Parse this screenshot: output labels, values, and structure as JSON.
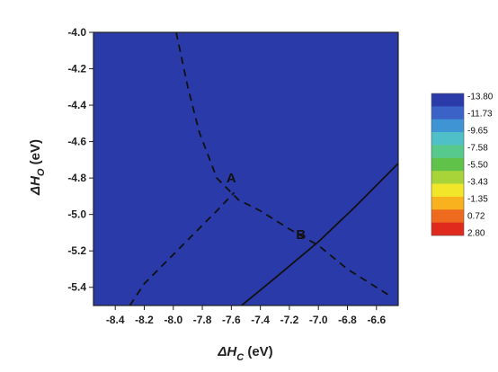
{
  "chart_data": {
    "type": "heatmap",
    "xlabel": {
      "prefix": "ΔH",
      "sub": "C",
      "suffix": " (eV)"
    },
    "ylabel": {
      "prefix": "ΔH",
      "sub": "O",
      "suffix": " (eV)"
    },
    "xlim": [
      -8.55,
      -6.45
    ],
    "ylim": [
      -5.5,
      -4.0
    ],
    "x_ticks": [
      "-8.4",
      "-8.2",
      "-8.0",
      "-7.8",
      "-7.6",
      "-7.4",
      "-7.2",
      "-7.0",
      "-6.8",
      "-6.6"
    ],
    "x_tick_values": [
      -8.4,
      -8.2,
      -8.0,
      -7.8,
      -7.6,
      -7.4,
      -7.2,
      -7.0,
      -6.8,
      -6.6
    ],
    "y_ticks": [
      "-4.0",
      "-4.2",
      "-4.4",
      "-4.6",
      "-4.8",
      "-5.0",
      "-5.2",
      "-5.4"
    ],
    "y_tick_values": [
      -4.0,
      -4.2,
      -4.4,
      -4.6,
      -4.8,
      -5.0,
      -5.2,
      -5.4
    ],
    "colorbar": {
      "labels": [
        "-13.80",
        "-11.73",
        "-9.65",
        "-7.58",
        "-5.50",
        "-3.43",
        "-1.35",
        "0.72",
        "2.80"
      ],
      "values": [
        -13.8,
        -11.73,
        -9.65,
        -7.58,
        -5.5,
        -3.43,
        -1.35,
        0.72,
        2.8
      ],
      "colors": [
        "#2a3aa8",
        "#3b62c6",
        "#3f94d4",
        "#4fc0c8",
        "#58c98c",
        "#61c24a",
        "#a8d43a",
        "#f2e62a",
        "#f7b21e",
        "#ee6a1f",
        "#e02a1d"
      ]
    },
    "points": [
      {
        "label": "A",
        "x": -7.6,
        "y": -4.8
      },
      {
        "label": "B",
        "x": -7.12,
        "y": -5.11
      }
    ],
    "dashed_boundary_points": [
      [
        -7.98,
        -4.0
      ],
      [
        -7.9,
        -4.3
      ],
      [
        -7.82,
        -4.55
      ],
      [
        -7.7,
        -4.8
      ],
      [
        -7.55,
        -4.92
      ],
      [
        -7.4,
        -4.98
      ],
      [
        -7.2,
        -5.08
      ],
      [
        -7.0,
        -5.17
      ],
      [
        -6.8,
        -5.3
      ],
      [
        -6.5,
        -5.45
      ]
    ],
    "dashed_left_points": [
      [
        -8.3,
        -5.5
      ],
      [
        -8.2,
        -5.38
      ],
      [
        -8.0,
        -5.22
      ],
      [
        -7.85,
        -5.1
      ],
      [
        -7.7,
        -4.98
      ],
      [
        -7.58,
        -4.88
      ]
    ],
    "solid_line_points": [
      [
        -7.53,
        -5.5
      ],
      [
        -7.3,
        -5.35
      ],
      [
        -7.0,
        -5.15
      ],
      [
        -6.75,
        -4.96
      ],
      [
        -6.45,
        -4.72
      ]
    ]
  }
}
